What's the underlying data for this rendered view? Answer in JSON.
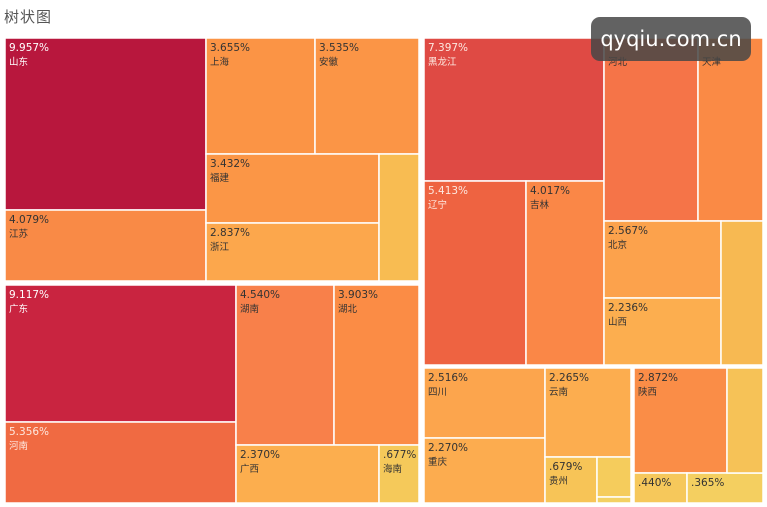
{
  "title": "树状图",
  "watermark": "qyqiu.com.cn",
  "chart_data": {
    "type": "treemap",
    "title": "树状图",
    "unit": "%",
    "groups": [
      {
        "items": [
          {
            "name": "山东",
            "label": "9.957%",
            "value": 9.957,
            "color": "#b8173d"
          },
          {
            "name": "江苏",
            "label": "4.079%",
            "value": 4.079,
            "color": "#f98a46"
          },
          {
            "name": "上海",
            "label": "3.655%",
            "value": 3.655,
            "color": "#fb9445"
          },
          {
            "name": "安徽",
            "label": "3.535%",
            "value": 3.535,
            "color": "#fb9546"
          },
          {
            "name": "福建",
            "label": "3.432%",
            "value": 3.432,
            "color": "#fb9646"
          },
          {
            "name": "浙江",
            "label": "2.837%",
            "value": 2.837,
            "color": "#fca74c"
          },
          {
            "name": "",
            "label": "",
            "value": null,
            "color": "#f8bc52"
          }
        ]
      },
      {
        "items": [
          {
            "name": "广东",
            "label": "9.117%",
            "value": 9.117,
            "color": "#c92440"
          },
          {
            "name": "河南",
            "label": "5.356%",
            "value": 5.356,
            "color": "#f06a42"
          },
          {
            "name": "湖南",
            "label": "4.540%",
            "value": 4.54,
            "color": "#f8804a"
          },
          {
            "name": "湖北",
            "label": "3.903%",
            "value": 3.903,
            "color": "#fb8c45"
          },
          {
            "name": "广西",
            "label": "2.370%",
            "value": 2.37,
            "color": "#fcae4e"
          },
          {
            "name": "海南",
            "label": ".677%",
            "value": 0.677,
            "color": "#f5c95a"
          }
        ]
      },
      {
        "items": [
          {
            "name": "黑龙江",
            "label": "7.397%",
            "value": 7.397,
            "color": "#df4a44"
          },
          {
            "name": "辽宁",
            "label": "5.413%",
            "value": 5.413,
            "color": "#ee6341"
          },
          {
            "name": "吉林",
            "label": "4.017%",
            "value": 4.017,
            "color": "#fa8747"
          },
          {
            "name": "河北",
            "label": "",
            "value": null,
            "color": "#f57448"
          },
          {
            "name": "天津",
            "label": "",
            "value": null,
            "color": "#fa8a45"
          },
          {
            "name": "北京",
            "label": "2.567%",
            "value": 2.567,
            "color": "#fca24c"
          },
          {
            "name": "山西",
            "label": "2.236%",
            "value": 2.236,
            "color": "#fcae4f"
          },
          {
            "name": "",
            "label": "",
            "value": null,
            "color": "#f7b952"
          }
        ]
      },
      {
        "items": [
          {
            "name": "四川",
            "label": "2.516%",
            "value": 2.516,
            "color": "#fca54d"
          },
          {
            "name": "重庆",
            "label": "2.270%",
            "value": 2.27,
            "color": "#fcac4f"
          },
          {
            "name": "云南",
            "label": "2.265%",
            "value": 2.265,
            "color": "#fcad4f"
          },
          {
            "name": "贵州",
            "label": ".679%",
            "value": 0.679,
            "color": "#f7c457"
          },
          {
            "name": "",
            "label": "",
            "value": null,
            "color": "#f5cc5c"
          },
          {
            "name": "",
            "label": "",
            "value": null,
            "color": "#f3d163"
          }
        ]
      },
      {
        "items": [
          {
            "name": "陕西",
            "label": "2.872%",
            "value": 2.872,
            "color": "#fa8d47"
          },
          {
            "name": "",
            "label": ".440%",
            "value": 0.44,
            "color": "#f6c85b"
          },
          {
            "name": "",
            "label": ".365%",
            "value": 0.365,
            "color": "#f4cf60"
          },
          {
            "name": "",
            "label": "",
            "value": null,
            "color": "#f6c257"
          }
        ]
      }
    ]
  }
}
